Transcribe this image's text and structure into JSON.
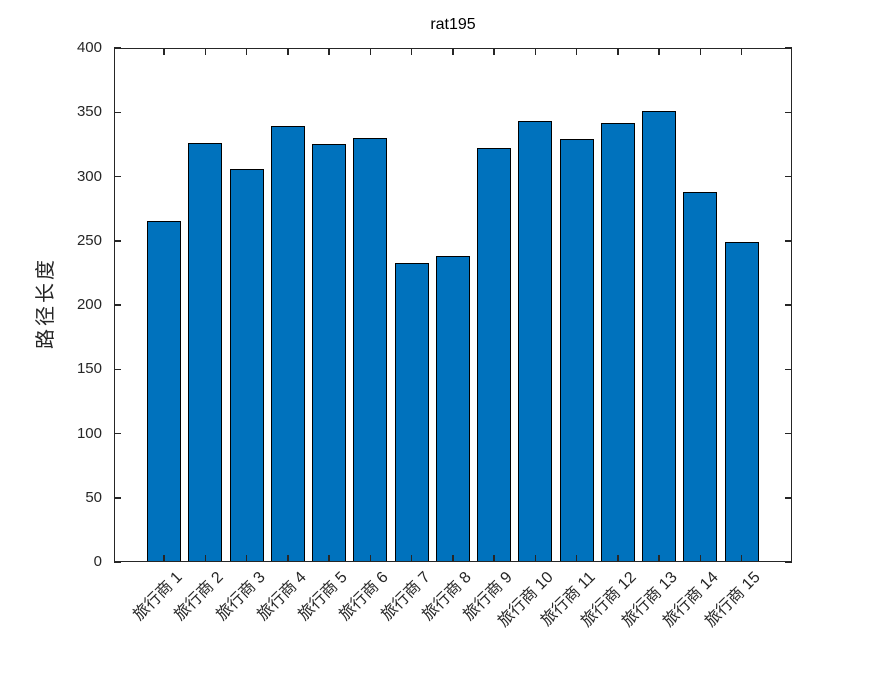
{
  "chart_data": {
    "type": "bar",
    "title": "rat195",
    "ylabel": "路径长度",
    "xlabel": "",
    "categories": [
      "旅行商 1",
      "旅行商 2",
      "旅行商 3",
      "旅行商 4",
      "旅行商 5",
      "旅行商 6",
      "旅行商 7",
      "旅行商 8",
      "旅行商 9",
      "旅行商 10",
      "旅行商 11",
      "旅行商 12",
      "旅行商 13",
      "旅行商 14",
      "旅行商 15"
    ],
    "values": [
      265,
      326,
      306,
      339,
      325,
      330,
      233,
      238,
      322,
      343,
      329,
      342,
      351,
      288,
      249
    ],
    "ylim": [
      0,
      400
    ],
    "yticks": [
      0,
      50,
      100,
      150,
      200,
      250,
      300,
      350,
      400
    ],
    "x_tick_rotation": 45,
    "grid": false,
    "box": true,
    "tick_direction": "in",
    "legend": "none",
    "colors": {
      "bar_fill": "#0072BD",
      "bar_edge": "#000000",
      "axis": "#262626",
      "title_text": "#000000",
      "background": "#ffffff"
    }
  }
}
